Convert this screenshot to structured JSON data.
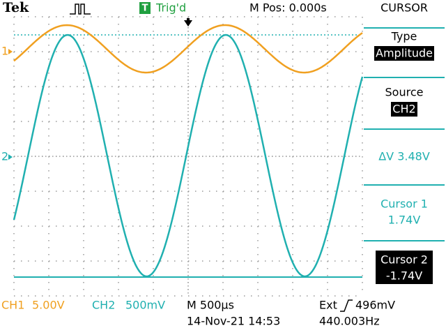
{
  "header": {
    "brand": "Tek",
    "trigger_icon": "T",
    "trigger_status": "Trig'd",
    "horizontal_position": "M Pos: 0.000s"
  },
  "channel_markers": {
    "ch1": "1",
    "ch2": "2"
  },
  "menu": {
    "title": "CURSOR",
    "type": {
      "label": "Type",
      "value": "Amplitude"
    },
    "source": {
      "label": "Source",
      "value": "CH2"
    },
    "delta": "ΔV 3.48V",
    "cursor1": {
      "label": "Cursor 1",
      "value": "1.74V"
    },
    "cursor2": {
      "label": "Cursor 2",
      "value": "-1.74V"
    }
  },
  "footer": {
    "ch1_name": "CH1",
    "ch1_scale": "5.00V",
    "ch2_name": "CH2",
    "ch2_scale": "500mV",
    "timebase": "M 500µs",
    "trigger_source": "Ext",
    "trigger_level": "496mV",
    "date_time": "14-Nov-21 14:53",
    "frequency": "440.003Hz"
  }
}
